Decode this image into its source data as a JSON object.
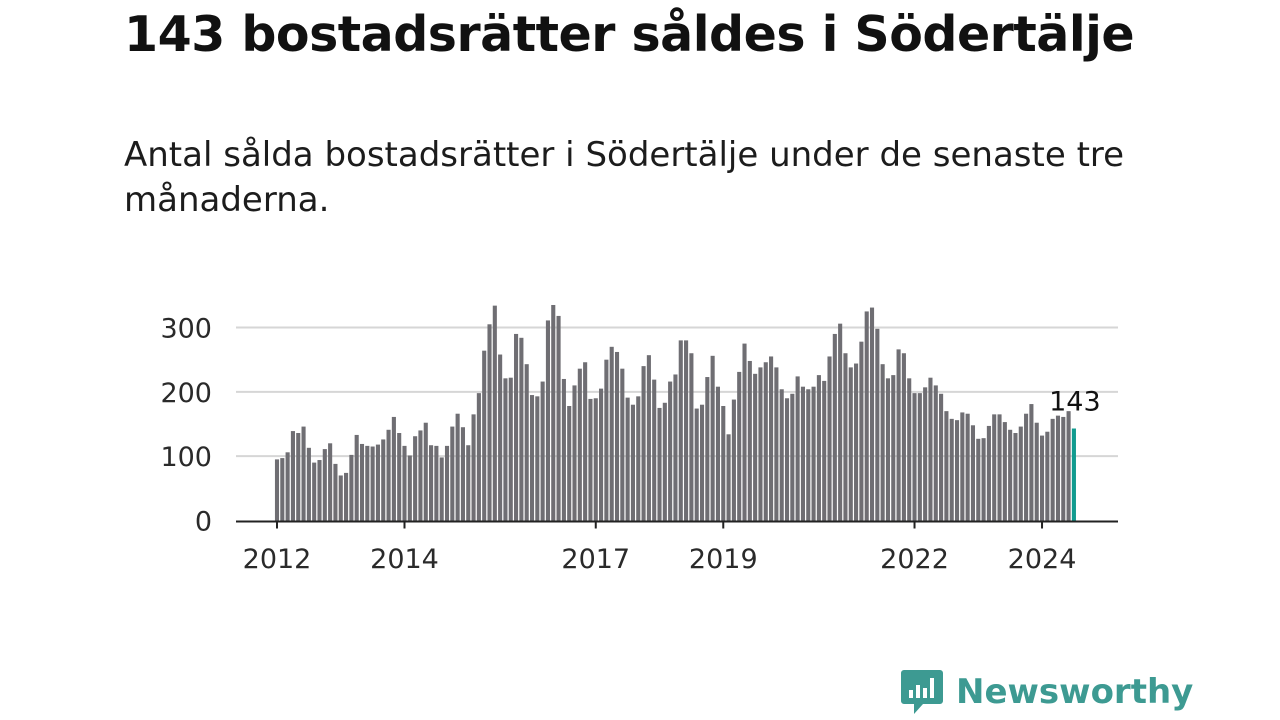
{
  "header": {
    "title": "143 bostadsrätter såldes i Södertälje",
    "subtitle": "Antal sålda bostadsrätter i Södertälje under de senaste tre månaderna."
  },
  "brand": {
    "name": "Newsworthy"
  },
  "colors": {
    "bar": "#6f6e73",
    "highlight": "#119b8f",
    "grid": "#d6d6d6",
    "axis": "#222222",
    "brand": "#3d9a92"
  },
  "chart_data": {
    "type": "bar",
    "title": "Antal sålda bostadsrätter i Södertälje",
    "xlabel": "",
    "ylabel": "",
    "ylim": [
      0,
      360
    ],
    "yticks": [
      0,
      100,
      200,
      300
    ],
    "xtick_labels": [
      {
        "label": "2012",
        "index": 0
      },
      {
        "label": "2014",
        "index": 24
      },
      {
        "label": "2017",
        "index": 60
      },
      {
        "label": "2019",
        "index": 84
      },
      {
        "label": "2022",
        "index": 120
      },
      {
        "label": "2024",
        "index": 144
      }
    ],
    "start": "2012-01",
    "end": "2024-07",
    "values": [
      95,
      97,
      106,
      139,
      136,
      146,
      113,
      90,
      94,
      111,
      120,
      88,
      70,
      74,
      102,
      133,
      119,
      116,
      115,
      118,
      126,
      141,
      161,
      136,
      116,
      101,
      131,
      140,
      152,
      117,
      116,
      98,
      116,
      146,
      166,
      145,
      117,
      165,
      198,
      264,
      305,
      334,
      258,
      221,
      222,
      290,
      284,
      243,
      195,
      193,
      216,
      311,
      335,
      318,
      220,
      178,
      210,
      236,
      246,
      189,
      190,
      205,
      250,
      270,
      262,
      236,
      191,
      180,
      193,
      240,
      257,
      219,
      175,
      183,
      216,
      227,
      280,
      280,
      260,
      174,
      180,
      223,
      256,
      208,
      178,
      134,
      188,
      231,
      275,
      248,
      228,
      238,
      246,
      255,
      238,
      204,
      190,
      197,
      224,
      208,
      204,
      208,
      226,
      217,
      255,
      290,
      306,
      260,
      238,
      244,
      278,
      325,
      331,
      298,
      243,
      221,
      226,
      266,
      260,
      221,
      198,
      198,
      207,
      222,
      210,
      197,
      170,
      158,
      156,
      168,
      166,
      148,
      127,
      128,
      147,
      165,
      165,
      153,
      141,
      136,
      146,
      166,
      181,
      152,
      132,
      138,
      158,
      163,
      161,
      170,
      143
    ],
    "highlight": {
      "label": "143",
      "value": 143,
      "index": 150
    }
  }
}
